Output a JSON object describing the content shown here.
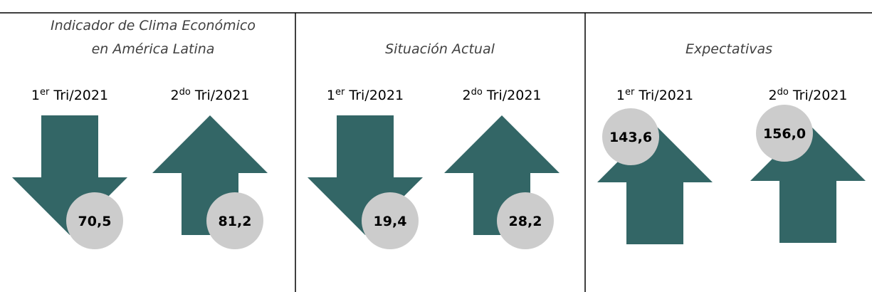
{
  "panels": [
    {
      "title": [
        "Indicador de Clima Económico",
        "en América Latina"
      ],
      "items": [
        {
          "period": {
            "number": "1",
            "suffix": "er",
            "rest": " Tri/2021"
          },
          "arrow": "down",
          "value": "70,5"
        },
        {
          "period": {
            "number": "2",
            "suffix": "do",
            "rest": " Tri/2021"
          },
          "arrow": "up",
          "value": "81,2"
        }
      ]
    },
    {
      "title": [
        "Situación Actual"
      ],
      "items": [
        {
          "period": {
            "number": "1",
            "suffix": "er",
            "rest": " Tri/2021"
          },
          "arrow": "down",
          "value": "19,4"
        },
        {
          "period": {
            "number": "2",
            "suffix": "do",
            "rest": " Tri/2021"
          },
          "arrow": "up",
          "value": "28,2"
        }
      ]
    },
    {
      "title": [
        "Expectativas"
      ],
      "items": [
        {
          "period": {
            "number": "1",
            "suffix": "er",
            "rest": " Tri/2021"
          },
          "arrow": "up",
          "value": "143,6"
        },
        {
          "period": {
            "number": "2",
            "suffix": "do",
            "rest": " Tri/2021"
          },
          "arrow": "up",
          "value": "156,0"
        }
      ]
    }
  ]
}
